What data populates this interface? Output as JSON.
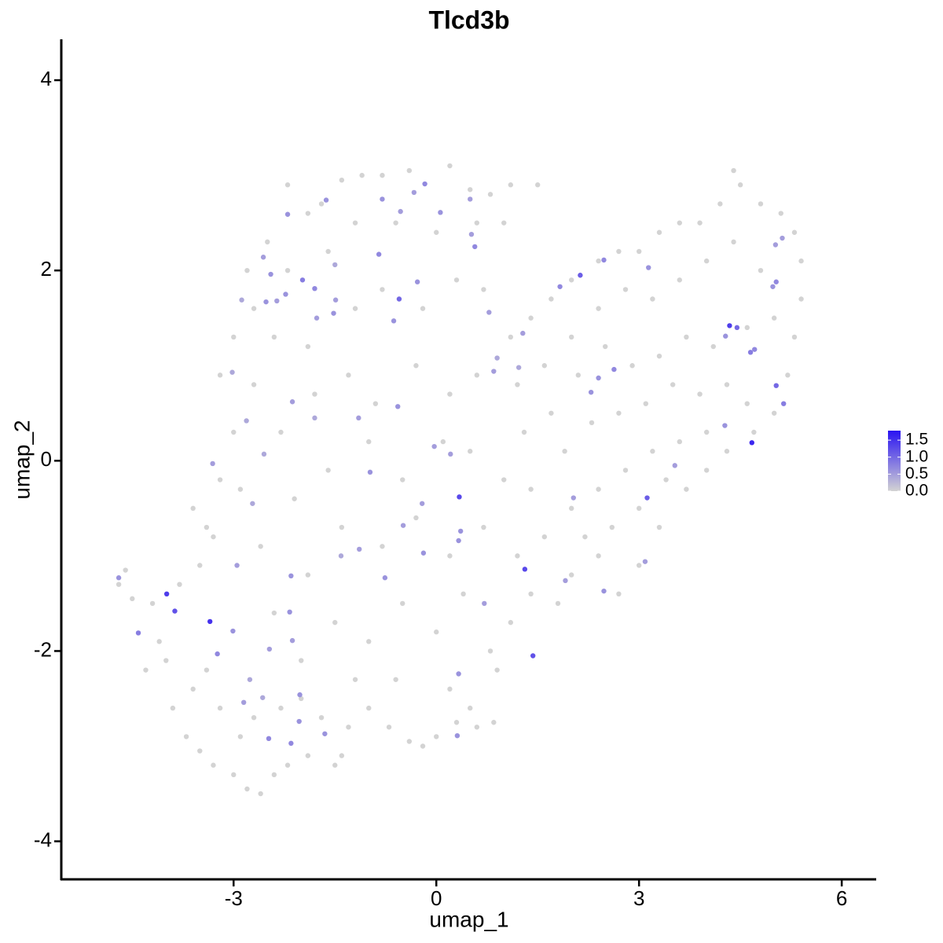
{
  "chart_data": {
    "type": "scatter",
    "title": "Tlcd3b",
    "x_label": "umap_1",
    "y_label": "umap_2",
    "x": [
      -4.7,
      -4.6,
      -4.5,
      -4.2,
      -4.1,
      -4.3,
      -4.0,
      -3.9,
      -3.7,
      -3.5,
      -3.3,
      -3.0,
      -2.8,
      -2.6,
      -2.4,
      -2.2,
      -1.9,
      -1.5,
      -1.4,
      -3.6,
      -3.4,
      -3.2,
      -2.9,
      -2.7,
      -2.3,
      -2.0,
      -1.7,
      -1.3,
      -1.0,
      -0.7,
      -0.4,
      -0.2,
      0.0,
      0.3,
      0.5,
      0.6,
      0.85,
      -3.8,
      -3.5,
      -3.3,
      -3.6,
      -3.2,
      -3.4,
      -2.9,
      -3.0,
      -2.7,
      -3.2,
      -3.0,
      -2.7,
      -2.8,
      -2.5,
      -2.2,
      -1.9,
      -1.7,
      -1.4,
      -1.1,
      -0.8,
      -0.4,
      0.2,
      0.5,
      0.8,
      1.1,
      1.5,
      -2.2,
      -1.6,
      -1.2,
      -0.6,
      0.0,
      0.6,
      1.0,
      -2.4,
      -1.9,
      -1.2,
      -0.8,
      -0.2,
      0.3,
      0.7,
      -2.3,
      -1.8,
      -1.3,
      -0.9,
      -0.3,
      0.2,
      0.6,
      -2.6,
      -2.1,
      -1.6,
      -1.0,
      -0.5,
      0.1,
      0.5,
      -2.4,
      -1.9,
      -1.4,
      -0.8,
      -0.3,
      0.2,
      0.7,
      -2.0,
      -1.5,
      -1.0,
      -0.5,
      0.0,
      0.4,
      0.8,
      -1.2,
      -0.6,
      0.2,
      0.9,
      1.1,
      1.4,
      1.8,
      2.0,
      2.4,
      2.7,
      3.0,
      3.3,
      3.7,
      4.0,
      4.3,
      4.7,
      5.0,
      5.2,
      5.3,
      5.4,
      5.4,
      5.3,
      5.1,
      4.8,
      4.5,
      4.4,
      4.2,
      3.9,
      3.6,
      3.3,
      3.0,
      2.7,
      2.4,
      2.0,
      1.7,
      1.4,
      1.1,
      1.2,
      1.6,
      2.0,
      2.4,
      2.8,
      3.2,
      3.6,
      4.0,
      4.4,
      4.8,
      5.0,
      4.6,
      4.1,
      3.7,
      3.3,
      2.9,
      2.5,
      2.1,
      1.7,
      1.3,
      1.0,
      1.4,
      1.9,
      2.3,
      2.7,
      3.1,
      3.5,
      3.9,
      4.3,
      4.6,
      4.0,
      3.6,
      3.2,
      2.8,
      2.4,
      2.0,
      1.6,
      1.2,
      2.2,
      2.6,
      3.0,
      3.4,
      -4.7,
      -3.99,
      -3.87,
      -4.41,
      -3.35,
      -3.01,
      -3.24,
      -3.31,
      -3.02,
      -2.88,
      -2.56,
      -2.45,
      -2.2,
      -1.98,
      -1.8,
      -2.52,
      -2.36,
      -2.23,
      -1.77,
      -1.52,
      -1.49,
      -1.63,
      -1.5,
      -2.13,
      -1.8,
      -2.81,
      -2.55,
      -2.72,
      -2.95,
      -2.15,
      -2.17,
      -2.13,
      -2.47,
      -2.76,
      -2.57,
      -2.85,
      -2.02,
      -2.03,
      -2.48,
      -2.15,
      -1.65,
      -1.41,
      -1.14,
      -1.15,
      -0.98,
      -0.76,
      -0.8,
      -0.53,
      -0.85,
      -0.63,
      -0.55,
      -0.57,
      -0.49,
      -0.19,
      -0.21,
      -0.17,
      -0.33,
      0.06,
      -0.28,
      0.5,
      0.57,
      0.52,
      -0.03,
      0.21,
      0.34,
      0.36,
      0.33,
      0.33,
      0.31,
      0.78,
      0.85,
      0.9,
      0.71,
      1.22,
      1.28,
      1.31,
      1.43,
      1.83,
      2.13,
      2.03,
      1.91,
      2.29,
      2.4,
      2.63,
      2.48,
      2.48,
      3.14,
      3.12,
      3.09,
      3.53,
      4.28,
      4.34,
      4.45,
      4.27,
      4.65,
      4.71,
      4.67,
      5.03,
      5.14,
      4.98,
      5.02,
      5.12,
      5.03
    ],
    "y": [
      -1.3,
      -1.15,
      -1.45,
      -1.5,
      -1.9,
      -2.2,
      -2.1,
      -2.6,
      -2.9,
      -3.05,
      -3.2,
      -3.3,
      -3.45,
      -3.5,
      -3.3,
      -3.2,
      -3.1,
      -3.2,
      -3.1,
      -2.4,
      -2.2,
      -2.6,
      -2.9,
      -2.7,
      -2.6,
      -2.5,
      -2.7,
      -2.8,
      -2.6,
      -2.8,
      -2.95,
      -3.0,
      -2.9,
      -2.75,
      -2.6,
      -2.8,
      -2.75,
      -1.3,
      -1.1,
      -0.8,
      -0.5,
      -0.2,
      -0.7,
      -0.3,
      0.3,
      0.8,
      0.9,
      1.3,
      1.6,
      2.0,
      2.3,
      2.9,
      2.6,
      2.7,
      2.95,
      3.0,
      3.0,
      3.05,
      3.1,
      2.85,
      2.8,
      2.9,
      2.9,
      2.0,
      2.2,
      2.5,
      2.5,
      2.4,
      2.5,
      2.5,
      1.3,
      1.2,
      1.6,
      1.8,
      1.6,
      1.9,
      1.8,
      0.3,
      0.7,
      0.9,
      0.6,
      1.0,
      0.7,
      0.9,
      -0.9,
      -0.4,
      -0.1,
      0.2,
      -0.2,
      0.2,
      0.1,
      -1.6,
      -1.2,
      -0.7,
      -0.9,
      -0.6,
      -1.0,
      -0.7,
      -2.1,
      -1.7,
      -1.9,
      -1.5,
      -1.8,
      -1.4,
      -2.0,
      -2.3,
      -2.3,
      -2.4,
      -2.2,
      -1.7,
      -1.4,
      -1.5,
      -1.2,
      -1.0,
      -1.4,
      -1.1,
      -0.7,
      -0.3,
      -0.1,
      0.1,
      0.3,
      0.5,
      0.9,
      1.3,
      1.7,
      2.1,
      2.4,
      2.6,
      2.7,
      2.9,
      3.05,
      2.7,
      2.5,
      2.5,
      2.4,
      2.2,
      2.2,
      2.1,
      1.9,
      1.7,
      1.5,
      1.3,
      0.8,
      1.0,
      1.3,
      1.6,
      1.8,
      1.7,
      1.9,
      2.1,
      2.3,
      2.0,
      1.5,
      1.4,
      1.2,
      1.3,
      1.1,
      1.0,
      1.2,
      0.9,
      0.5,
      0.3,
      -0.2,
      -0.3,
      0.1,
      0.4,
      0.5,
      0.6,
      0.8,
      0.7,
      0.8,
      0.6,
      0.3,
      0.2,
      0.1,
      -0.1,
      -0.3,
      -0.5,
      -0.8,
      -1.0,
      -0.8,
      -0.7,
      -0.5,
      -0.2,
      -1.23,
      -1.4,
      -1.58,
      -1.81,
      -1.69,
      -1.79,
      -2.03,
      -0.03,
      0.93,
      1.69,
      2.14,
      1.96,
      2.59,
      1.9,
      1.81,
      1.67,
      1.68,
      1.75,
      1.5,
      1.55,
      1.69,
      2.74,
      2.06,
      0.62,
      0.45,
      0.42,
      0.07,
      -0.45,
      -1.1,
      -1.21,
      -1.59,
      -1.89,
      -1.98,
      -2.3,
      -2.49,
      -2.54,
      -2.46,
      -2.74,
      -2.92,
      -2.97,
      -2.87,
      -1.0,
      -0.93,
      0.45,
      -0.12,
      -1.23,
      2.75,
      2.62,
      2.17,
      1.47,
      1.7,
      0.57,
      -0.68,
      -0.97,
      -0.45,
      2.91,
      2.82,
      2.61,
      1.88,
      2.75,
      2.25,
      2.38,
      0.15,
      0.07,
      -0.38,
      -0.74,
      -0.84,
      -2.24,
      -2.89,
      1.56,
      0.94,
      1.08,
      -1.5,
      0.98,
      1.34,
      -1.14,
      -2.05,
      1.83,
      1.95,
      -0.39,
      -1.26,
      0.72,
      0.87,
      0.96,
      2.11,
      -1.37,
      2.03,
      -0.39,
      -1.06,
      -0.05,
      1.31,
      1.42,
      1.4,
      0.37,
      1.14,
      1.17,
      0.19,
      0.79,
      0.6,
      1.83,
      2.27,
      2.34,
      1.88
    ],
    "expression": [
      0,
      0,
      0,
      0,
      0,
      0,
      0,
      0,
      0,
      0,
      0,
      0,
      0,
      0,
      0,
      0,
      0,
      0,
      0,
      0,
      0,
      0,
      0,
      0,
      0,
      0,
      0,
      0,
      0,
      0,
      0,
      0,
      0,
      0,
      0,
      0,
      0,
      0,
      0,
      0,
      0,
      0,
      0,
      0,
      0,
      0,
      0,
      0,
      0,
      0,
      0,
      0,
      0,
      0,
      0,
      0,
      0,
      0,
      0,
      0,
      0,
      0,
      0,
      0,
      0,
      0,
      0,
      0,
      0,
      0,
      0,
      0,
      0,
      0,
      0,
      0,
      0,
      0,
      0,
      0,
      0,
      0,
      0,
      0,
      0,
      0,
      0,
      0,
      0,
      0,
      0,
      0,
      0,
      0,
      0,
      0,
      0,
      0,
      0,
      0,
      0,
      0,
      0,
      0,
      0,
      0,
      0,
      0,
      0,
      0,
      0,
      0,
      0,
      0,
      0,
      0,
      0,
      0,
      0,
      0,
      0,
      0,
      0,
      0,
      0,
      0,
      0,
      0,
      0,
      0,
      0,
      0,
      0,
      0,
      0,
      0,
      0,
      0,
      0,
      0,
      0,
      0,
      0,
      0,
      0,
      0,
      0,
      0,
      0,
      0,
      0,
      0,
      0,
      0,
      0,
      0,
      0,
      0,
      0,
      0,
      0,
      0,
      0,
      0,
      0,
      0,
      0,
      0,
      0,
      0,
      0,
      0,
      0,
      0,
      0,
      0,
      0,
      0,
      0,
      0,
      0,
      0,
      0,
      0,
      0.6,
      1.4,
      1.2,
      0.8,
      1.5,
      0.6,
      0.7,
      0.5,
      0.4,
      0.4,
      0.5,
      0.6,
      0.6,
      0.8,
      0.7,
      0.6,
      0.5,
      0.6,
      0.5,
      0.6,
      0.5,
      0.6,
      0.4,
      0.5,
      0.4,
      0.4,
      0.4,
      0.4,
      0.5,
      0.6,
      0.6,
      0.5,
      0.5,
      0.4,
      0.4,
      0.5,
      0.6,
      0.6,
      0.7,
      0.7,
      0.6,
      0.4,
      0.5,
      0.5,
      0.6,
      0.6,
      0.6,
      0.5,
      0.7,
      0.6,
      1.0,
      0.6,
      0.5,
      0.6,
      0.5,
      0.7,
      0.5,
      0.6,
      0.6,
      0.5,
      0.7,
      0.5,
      0.5,
      0.5,
      1.3,
      0.6,
      0.6,
      0.6,
      0.6,
      0.5,
      0.5,
      0.4,
      0.5,
      0.4,
      0.5,
      1.3,
      1.2,
      0.7,
      1.1,
      0.5,
      0.5,
      0.6,
      0.6,
      0.7,
      0.7,
      0.6,
      0.6,
      1.1,
      0.5,
      0.5,
      0.6,
      1.4,
      1.0,
      0.6,
      0.8,
      0.7,
      1.6,
      1.0,
      0.8,
      0.6,
      0.5,
      0.5,
      0.7
    ],
    "color_low": "#d3d3d3",
    "color_high": "#2a14f2",
    "color_lim": [
      0,
      1.78
    ],
    "color_ticks": [
      {
        "value": 0,
        "label": "0.0"
      },
      {
        "value": 0.5,
        "label": "0.5"
      },
      {
        "value": 1,
        "label": "1.0"
      },
      {
        "value": 1.5,
        "label": "1.5"
      }
    ],
    "xlim": [
      -5.55,
      6.51
    ],
    "xticks": [
      -3,
      0,
      3,
      6
    ],
    "ylim": [
      -4.4,
      4.43
    ],
    "yticks": [
      -4,
      -2,
      0,
      2,
      4
    ]
  }
}
